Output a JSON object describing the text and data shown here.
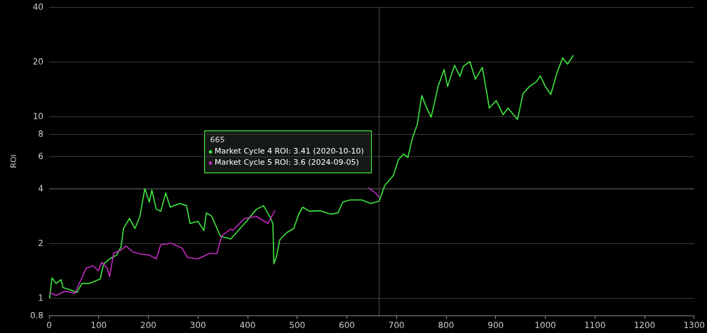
{
  "chart_data": {
    "type": "line",
    "ylabel": "ROI",
    "log": "y",
    "grid": "y",
    "marker": "none",
    "line_style": "solid",
    "xlim": [
      0,
      1300
    ],
    "xticks": [
      0,
      100,
      200,
      300,
      400,
      500,
      600,
      700,
      800,
      900,
      1000,
      1100,
      1200,
      1300
    ],
    "ylim": [
      0.8,
      40
    ],
    "yticks": [
      0.8,
      1,
      2,
      4,
      6,
      8,
      10,
      20,
      40
    ],
    "series": [
      {
        "color": "#3ee63e",
        "x": [
          1,
          6,
          14,
          24,
          28,
          42,
          56,
          66,
          80,
          103,
          110,
          122,
          136,
          145,
          150,
          162,
          173,
          183,
          193,
          202,
          207,
          216,
          225,
          235,
          244,
          263,
          277,
          284,
          300,
          312,
          317,
          328,
          345,
          366,
          394,
          418,
          432,
          446,
          451,
          453,
          458,
          465,
          479,
          493,
          503,
          511,
          525,
          545,
          568,
          582,
          592,
          606,
          630,
          648,
          665,
          676,
          694,
          704,
          714,
          723,
          732,
          742,
          751,
          761,
          770,
          784,
          796,
          803,
          817,
          828,
          835,
          848,
          859,
          873,
          883,
          887,
          901,
          915,
          925,
          944,
          955,
          968,
          982,
          990,
          1000,
          1011,
          1024,
          1035,
          1045,
          1056
        ],
        "values": [
          1.0,
          1.29,
          1.2,
          1.26,
          1.14,
          1.11,
          1.07,
          1.2,
          1.2,
          1.27,
          1.54,
          1.64,
          1.72,
          1.91,
          2.41,
          2.74,
          2.41,
          2.81,
          4.0,
          3.37,
          3.92,
          3.08,
          3.0,
          3.78,
          3.16,
          3.31,
          3.22,
          2.57,
          2.64,
          2.35,
          2.94,
          2.81,
          2.19,
          2.11,
          2.57,
          3.08,
          3.22,
          2.76,
          2.57,
          1.54,
          1.68,
          2.09,
          2.29,
          2.41,
          2.89,
          3.16,
          3.0,
          3.02,
          2.89,
          2.94,
          3.37,
          3.46,
          3.46,
          3.31,
          3.41,
          4.14,
          4.74,
          5.77,
          6.2,
          5.94,
          7.55,
          9.05,
          13.0,
          11.1,
          9.9,
          14.6,
          18.1,
          14.6,
          19.1,
          16.6,
          18.9,
          20.0,
          16.0,
          18.6,
          13.0,
          11.1,
          12.2,
          10.2,
          11.1,
          9.6,
          13.3,
          14.6,
          15.5,
          16.7,
          14.6,
          13.2,
          17.5,
          21.0,
          19.4,
          21.6
        ]
      },
      {
        "color": "#c02ac0",
        "x": [
          1,
          14,
          32,
          52,
          66,
          75,
          89,
          99,
          106,
          117,
          122,
          130,
          145,
          155,
          169,
          183,
          202,
          216,
          225,
          246,
          268,
          279,
          300,
          324,
          338,
          348,
          366,
          370,
          394,
          418,
          441,
          455,
          550,
          644,
          658,
          665
        ],
        "values": [
          1.07,
          1.03,
          1.09,
          1.06,
          1.29,
          1.46,
          1.5,
          1.41,
          1.57,
          1.46,
          1.31,
          1.76,
          1.83,
          1.93,
          1.79,
          1.75,
          1.72,
          1.64,
          1.96,
          2.0,
          1.88,
          1.67,
          1.64,
          1.76,
          1.75,
          2.2,
          2.39,
          2.35,
          2.74,
          2.81,
          2.57,
          3.02,
          null,
          4.03,
          3.78,
          3.6
        ]
      }
    ],
    "ref_lines": [
      {
        "axis": "x",
        "value": 665,
        "line_style": "dotted",
        "color": "#9a9a9a"
      },
      {
        "axis": "y",
        "value": 4,
        "line_style": "dotted",
        "color": "#9a9a9a"
      }
    ],
    "annotations": [
      "665",
      "Market Cycle 4 ROI: 3.41 (2020-10-10)",
      "Market Cycle 5 ROI: 3.6 (2024-09-05)"
    ]
  }
}
